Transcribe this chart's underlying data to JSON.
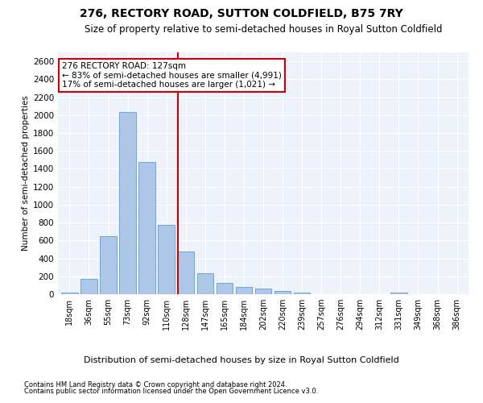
{
  "title": "276, RECTORY ROAD, SUTTON COLDFIELD, B75 7RY",
  "subtitle": "Size of property relative to semi-detached houses in Royal Sutton Coldfield",
  "xlabel_bottom": "Distribution of semi-detached houses by size in Royal Sutton Coldfield",
  "ylabel": "Number of semi-detached properties",
  "footnote1": "Contains HM Land Registry data © Crown copyright and database right 2024.",
  "footnote2": "Contains public sector information licensed under the Open Government Licence v3.0.",
  "annotation_title": "276 RECTORY ROAD: 127sqm",
  "annotation_line1": "← 83% of semi-detached houses are smaller (4,991)",
  "annotation_line2": "17% of semi-detached houses are larger (1,021) →",
  "bar_color": "#aec6e8",
  "bar_edge_color": "#5a9fd4",
  "vline_color": "#cc0000",
  "vline_x_index": 6,
  "categories": [
    "18sqm",
    "36sqm",
    "55sqm",
    "73sqm",
    "92sqm",
    "110sqm",
    "128sqm",
    "147sqm",
    "165sqm",
    "184sqm",
    "202sqm",
    "220sqm",
    "239sqm",
    "257sqm",
    "276sqm",
    "294sqm",
    "312sqm",
    "331sqm",
    "349sqm",
    "368sqm",
    "386sqm"
  ],
  "values": [
    20,
    175,
    650,
    2030,
    1480,
    770,
    480,
    235,
    125,
    80,
    60,
    35,
    20,
    0,
    0,
    0,
    0,
    20,
    0,
    0,
    0
  ],
  "ylim": [
    0,
    2700
  ],
  "yticks": [
    0,
    200,
    400,
    600,
    800,
    1000,
    1200,
    1400,
    1600,
    1800,
    2000,
    2200,
    2400,
    2600
  ],
  "background_color": "#eef3fb",
  "grid_color": "#ffffff",
  "title_fontsize": 10,
  "subtitle_fontsize": 8.5,
  "bar_width": 0.85
}
